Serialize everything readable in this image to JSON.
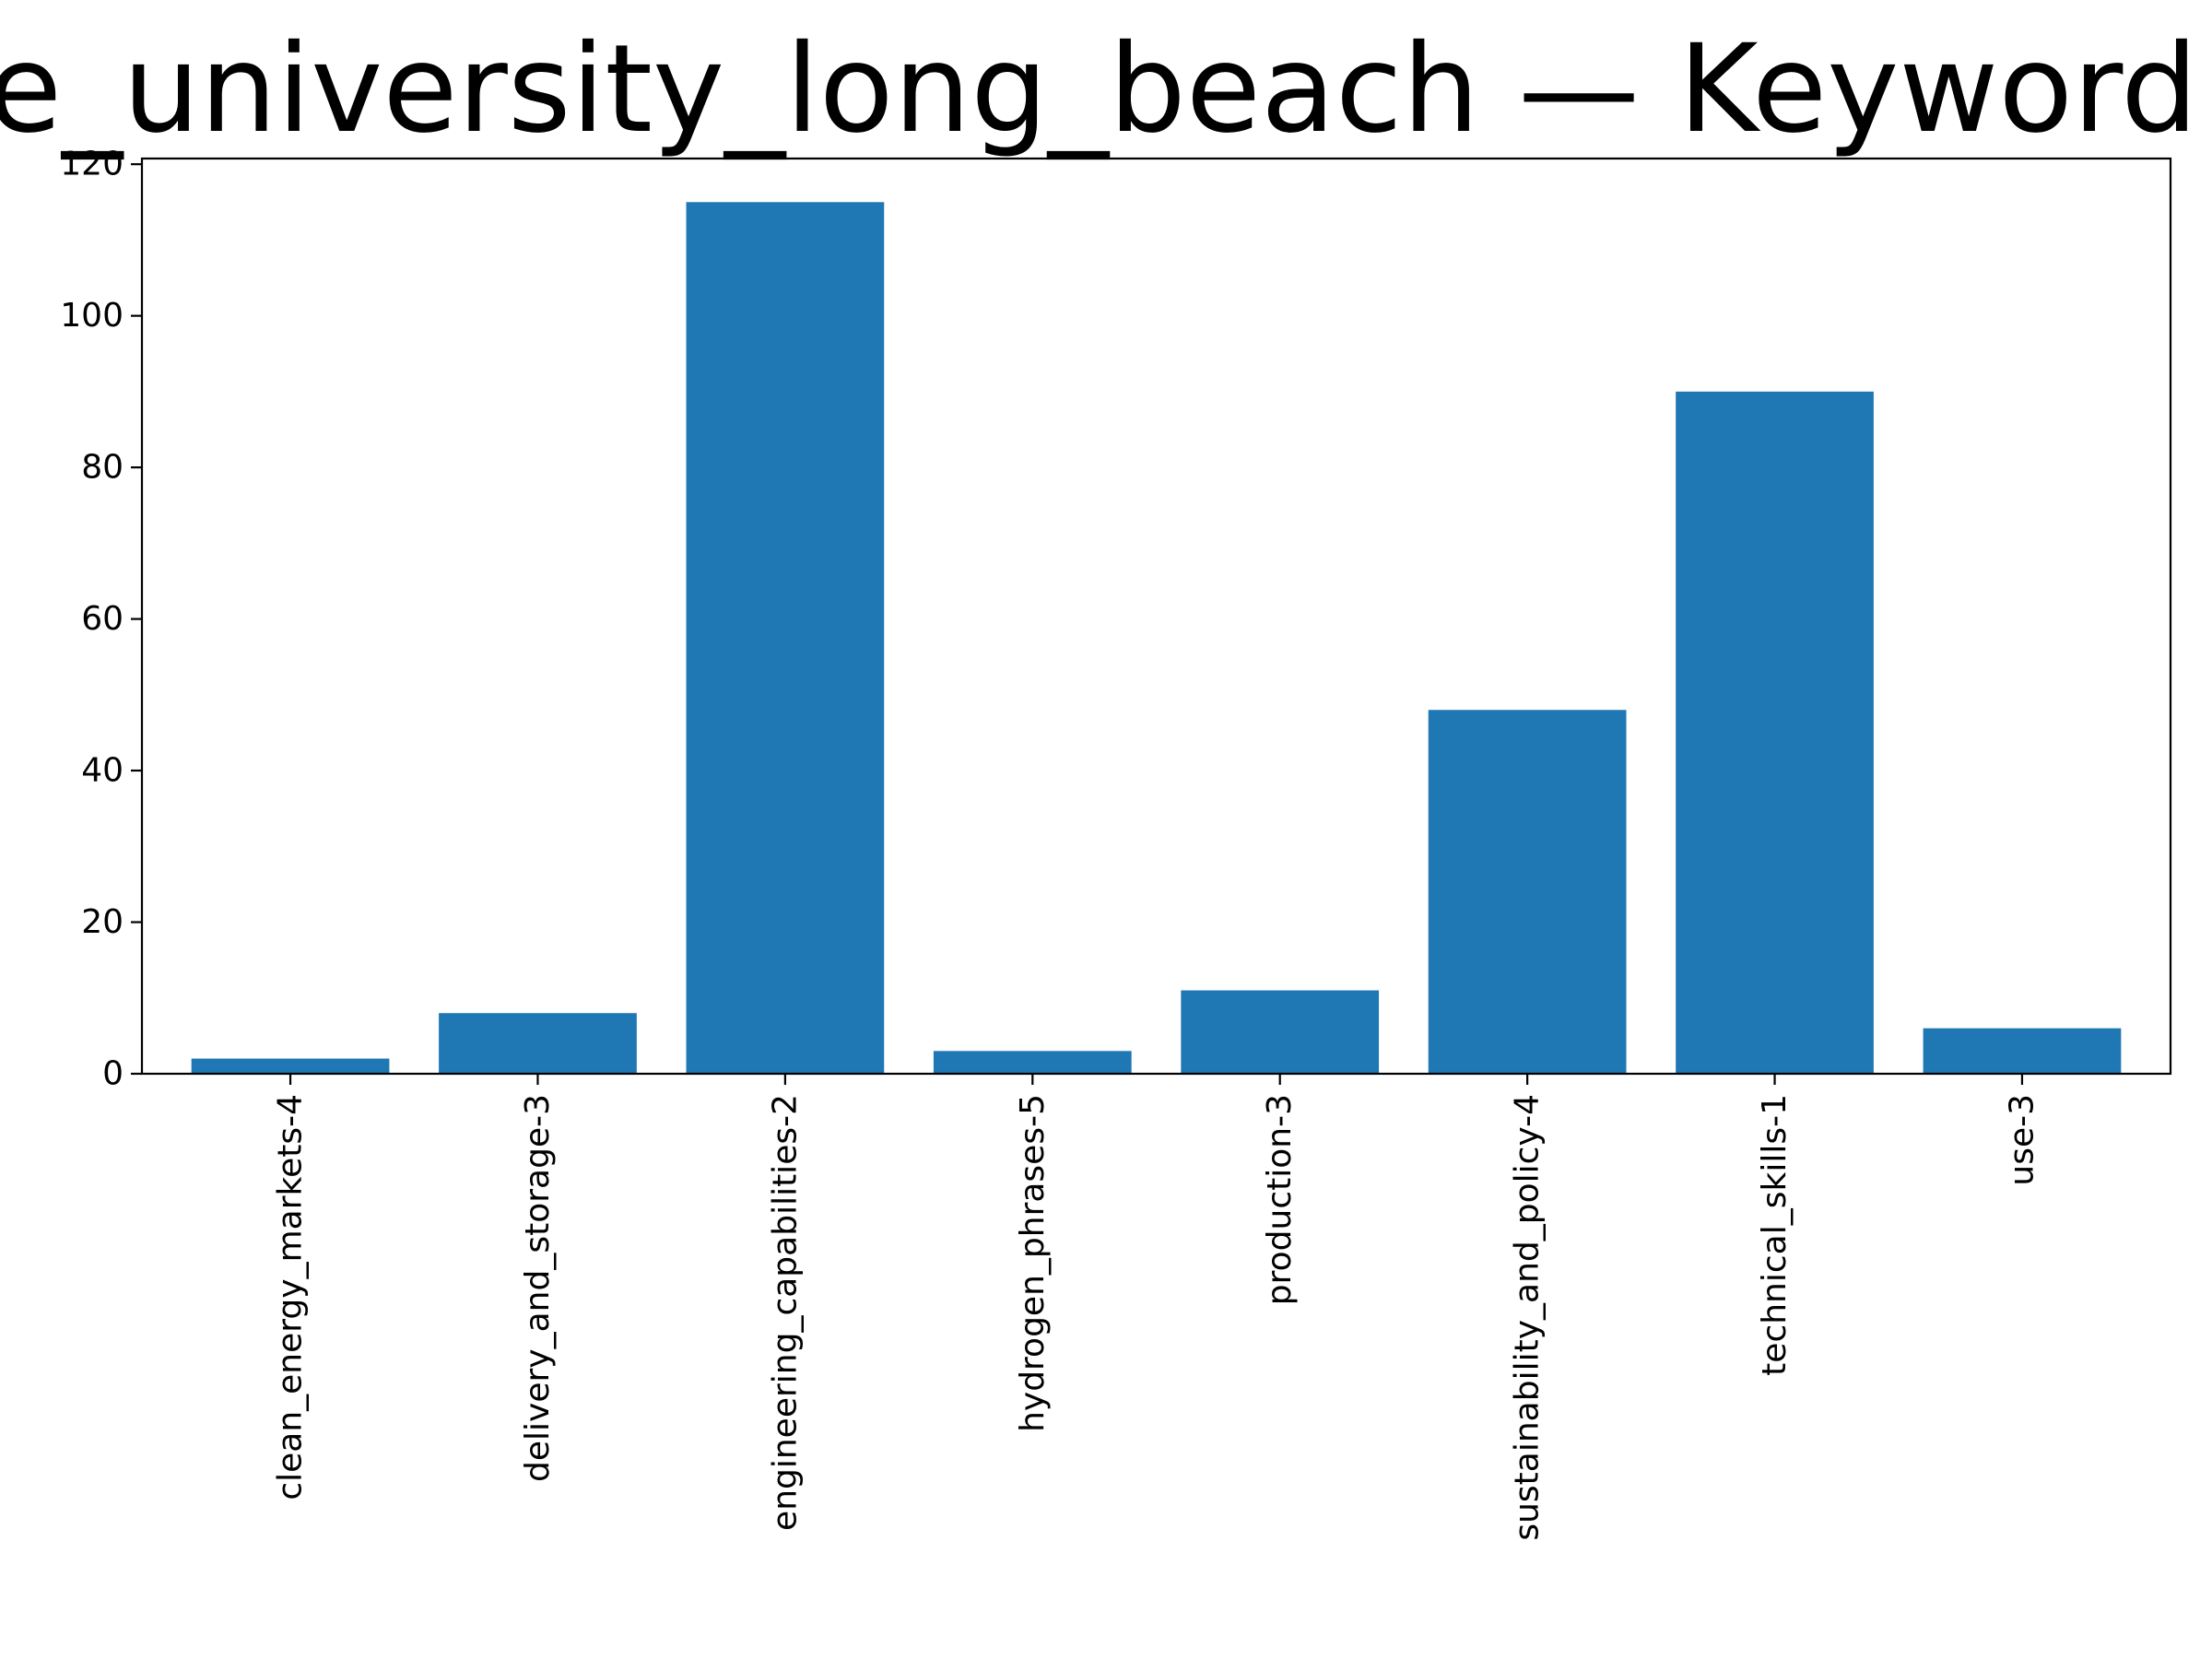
{
  "chart_data": {
    "type": "bar",
    "title": "e_university_long_beach — Keyword G",
    "xlabel": "",
    "ylabel": "",
    "categories": [
      "clean_energy_markets-4",
      "delivery_and_storage-3",
      "engineering_capabilities-2",
      "hydrogen_phrases-5",
      "production-3",
      "sustainability_and_policy-4",
      "technical_skills-1",
      "use-3"
    ],
    "values": [
      2,
      8,
      115,
      3,
      11,
      48,
      90,
      6
    ],
    "ylim": [
      0,
      120.75
    ],
    "yticks": [
      0,
      20,
      40,
      60,
      80,
      100,
      120
    ],
    "grid": false,
    "bar_color": "#1f77b4"
  }
}
